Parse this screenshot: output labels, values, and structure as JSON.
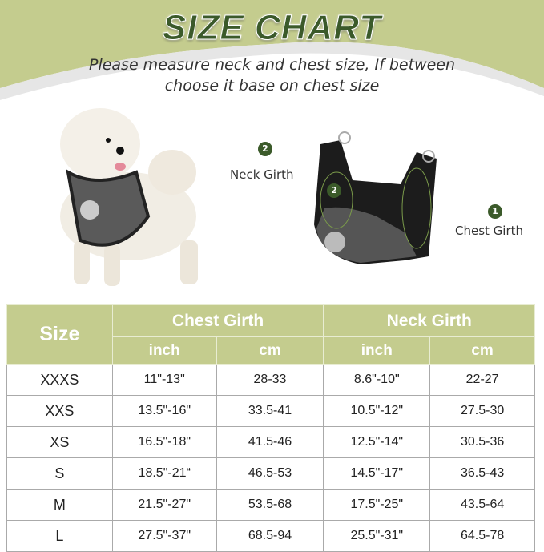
{
  "title": "SIZE CHART",
  "subtitle_line1": "Please measure neck and chest size, If between",
  "subtitle_line2": "choose it base on chest size",
  "colors": {
    "accent_green": "#c4cc8e",
    "title_green": "#3b5a2a"
  },
  "diagram": {
    "neck_label": "Neck Girth",
    "neck_num": "2",
    "chest_label": "Chest Girth",
    "chest_num": "1",
    "harness_num": "2"
  },
  "table": {
    "size_header": "Size",
    "chest_header": "Chest Girth",
    "neck_header": "Neck Girth",
    "unit_inch": "inch",
    "unit_cm": "cm",
    "rows": [
      [
        "XXXS",
        "11\"-13\"",
        "28-33",
        "8.6\"-10\"",
        "22-27"
      ],
      [
        "XXS",
        "13.5\"-16\"",
        "33.5-41",
        "10.5\"-12\"",
        "27.5-30"
      ],
      [
        "XS",
        "16.5\"-18\"",
        "41.5-46",
        "12.5\"-14\"",
        "30.5-36"
      ],
      [
        "S",
        "18.5\"-21“",
        "46.5-53",
        "14.5\"-17\"",
        "36.5-43"
      ],
      [
        "M",
        "21.5\"-27\"",
        "53.5-68",
        "17.5\"-25\"",
        "43.5-64"
      ],
      [
        "L",
        "27.5\"-37\"",
        "68.5-94",
        "25.5\"-31\"",
        "64.5-78"
      ]
    ]
  }
}
